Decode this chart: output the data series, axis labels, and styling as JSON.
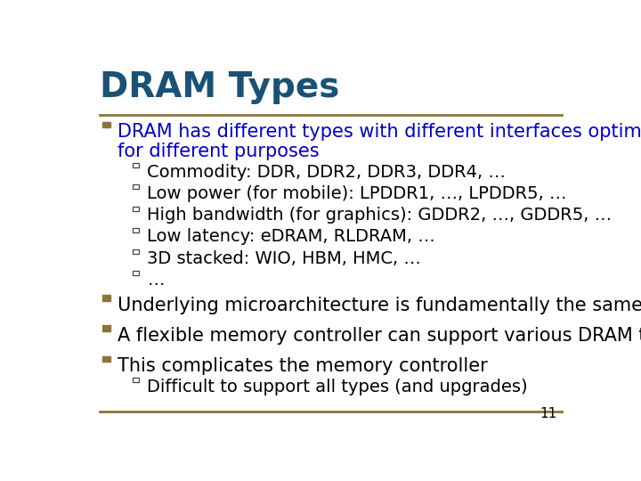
{
  "title": "DRAM Types",
  "title_color": "#1a5276",
  "title_fontsize": 28,
  "bg_color": "#ffffff",
  "rule_color": "#8B7536",
  "bullet_color": "#8B7536",
  "bullet_fontsize": 15,
  "sub_bullet_fontsize": 14,
  "page_number": "11",
  "bullets": [
    {
      "text": "DRAM has different types with different interfaces optimized\nfor different purposes",
      "color": "#0000CC",
      "sub_bullets": [
        "Commodity: DDR, DDR2, DDR3, DDR4, …",
        "Low power (for mobile): LPDDR1, …, LPDDR5, …",
        "High bandwidth (for graphics): GDDR2, …, GDDR5, …",
        "Low latency: eDRAM, RLDRAM, …",
        "3D stacked: WIO, HBM, HMC, …",
        "…"
      ]
    },
    {
      "text": "Underlying microarchitecture is fundamentally the same",
      "color": "#000000",
      "sub_bullets": []
    },
    {
      "text": "A flexible memory controller can support various DRAM types",
      "color": "#000000",
      "sub_bullets": []
    },
    {
      "text": "This complicates the memory controller",
      "color": "#000000",
      "sub_bullets": [
        "Difficult to support all types (and upgrades)"
      ]
    }
  ]
}
